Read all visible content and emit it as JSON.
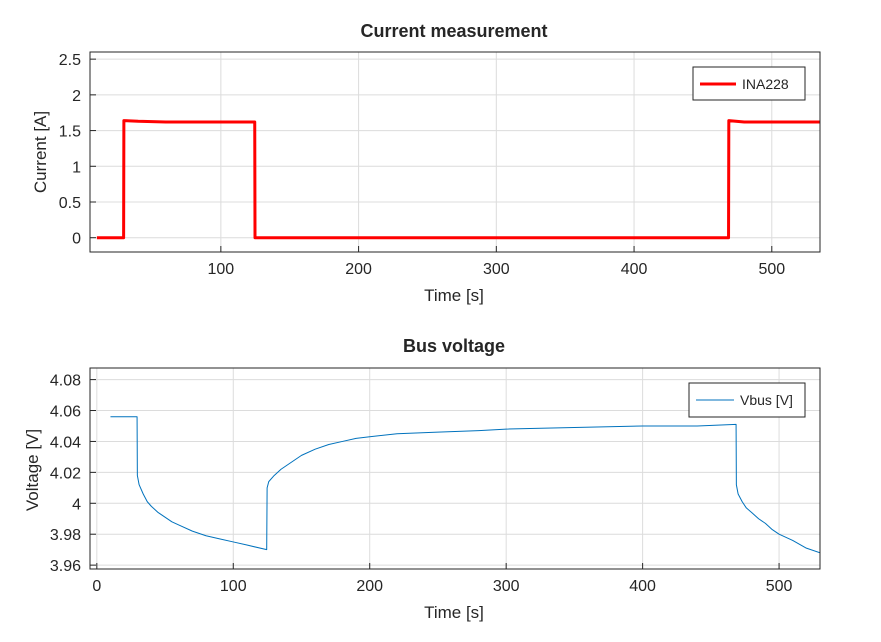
{
  "chart_data": [
    {
      "type": "line",
      "title": "Current measurement",
      "xlabel": "Time [s]",
      "ylabel": "Current [A]",
      "xlim": [
        5,
        535
      ],
      "ylim": [
        -0.2,
        2.6
      ],
      "xticks": [
        100,
        200,
        300,
        400,
        500
      ],
      "xtick_labels": [
        "100",
        "200",
        "300",
        "400",
        "500"
      ],
      "yticks": [
        0,
        0.5,
        1,
        1.5,
        2,
        2.5
      ],
      "ytick_labels": [
        "0",
        "0.5",
        "1",
        "1.5",
        "2",
        "2.5"
      ],
      "grid": true,
      "legend": "top-right",
      "series": [
        {
          "name": "INA228",
          "color": "#ff0000",
          "x": [
            10,
            29.4,
            29.6,
            40,
            60,
            80,
            100,
            124.6,
            124.8,
            200,
            300,
            400,
            468.6,
            468.8,
            480,
            500,
            535
          ],
          "y": [
            0,
            0,
            1.64,
            1.63,
            1.62,
            1.62,
            1.62,
            1.62,
            0,
            0,
            0,
            0,
            0,
            1.64,
            1.62,
            1.62,
            1.62
          ]
        }
      ]
    },
    {
      "type": "line",
      "title": "Bus voltage",
      "xlabel": "Time [s]",
      "ylabel": "Voltage [V]",
      "xlim": [
        -5,
        530
      ],
      "ylim": [
        3.9575,
        4.0875
      ],
      "xticks": [
        0,
        100,
        200,
        300,
        400,
        500
      ],
      "xtick_labels": [
        "0",
        "100",
        "200",
        "300",
        "400",
        "500"
      ],
      "yticks": [
        3.96,
        3.98,
        4,
        4.02,
        4.04,
        4.06,
        4.08
      ],
      "ytick_labels": [
        "3.96",
        "3.98",
        "4",
        "4.02",
        "4.04",
        "4.06",
        "4.08"
      ],
      "grid": true,
      "legend": "top-right",
      "series": [
        {
          "name": "Vbus [V]",
          "color": "#0072bd",
          "x": [
            10,
            20,
            29.5,
            29.7,
            31,
            34,
            37,
            40,
            45,
            50,
            55,
            60,
            70,
            80,
            90,
            100,
            110,
            124.5,
            124.8,
            126,
            130,
            135,
            140,
            145,
            150,
            160,
            170,
            180,
            190,
            200,
            220,
            250,
            280,
            300,
            350,
            400,
            440,
            468.5,
            468.7,
            470,
            473,
            476,
            480,
            485,
            490,
            495,
            500,
            510,
            520,
            530
          ],
          "y": [
            4.056,
            4.056,
            4.056,
            4.018,
            4.012,
            4.006,
            4.001,
            3.998,
            3.994,
            3.991,
            3.988,
            3.986,
            3.982,
            3.979,
            3.977,
            3.975,
            3.973,
            3.97,
            4.01,
            4.014,
            4.018,
            4.022,
            4.025,
            4.028,
            4.031,
            4.035,
            4.038,
            4.04,
            4.042,
            4.043,
            4.045,
            4.046,
            4.047,
            4.048,
            4.049,
            4.05,
            4.05,
            4.051,
            4.012,
            4.006,
            4.001,
            3.997,
            3.994,
            3.99,
            3.987,
            3.983,
            3.98,
            3.976,
            3.971,
            3.968
          ]
        }
      ]
    }
  ]
}
